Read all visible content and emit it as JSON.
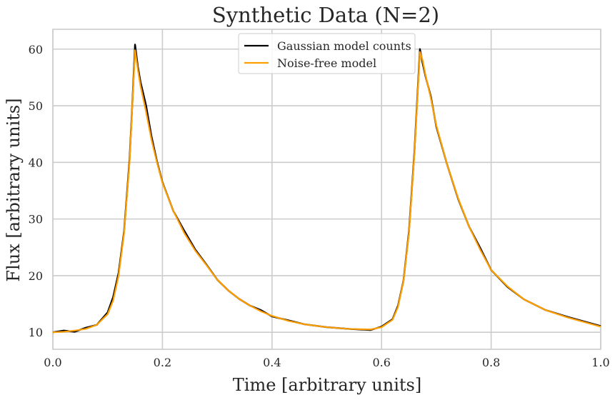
{
  "chart_data": {
    "type": "line",
    "title": "Synthetic Data (N=2)",
    "xlabel": "Time [arbitrary units]",
    "ylabel": "Flux [arbitrary units]",
    "xlim": [
      0.0,
      1.0
    ],
    "ylim": [
      7.0,
      63.5
    ],
    "xticks": [
      0.0,
      0.2,
      0.4,
      0.6,
      0.8,
      1.0
    ],
    "xtick_labels": [
      "0.0",
      "0.2",
      "0.4",
      "0.6",
      "0.8",
      "1.0"
    ],
    "yticks": [
      10,
      20,
      30,
      40,
      50,
      60
    ],
    "ytick_labels": [
      "10",
      "20",
      "30",
      "40",
      "50",
      "60"
    ],
    "grid": true,
    "legend_position": "top-center",
    "series": [
      {
        "name": "Gaussian model counts",
        "color": "#000000",
        "x": [
          0.0,
          0.02,
          0.04,
          0.06,
          0.08,
          0.1,
          0.11,
          0.12,
          0.13,
          0.14,
          0.145,
          0.15,
          0.155,
          0.16,
          0.17,
          0.18,
          0.19,
          0.2,
          0.22,
          0.24,
          0.26,
          0.28,
          0.3,
          0.32,
          0.34,
          0.36,
          0.38,
          0.4,
          0.43,
          0.46,
          0.5,
          0.54,
          0.58,
          0.6,
          0.62,
          0.63,
          0.64,
          0.65,
          0.66,
          0.67,
          0.675,
          0.68,
          0.69,
          0.7,
          0.72,
          0.74,
          0.76,
          0.78,
          0.8,
          0.83,
          0.86,
          0.9,
          0.94,
          0.97,
          1.0
        ],
        "y": [
          10.0,
          10.3,
          10.1,
          10.8,
          11.3,
          13.5,
          16.2,
          20.5,
          27.8,
          40.5,
          50.2,
          60.8,
          57.0,
          54.2,
          50.1,
          44.6,
          40.2,
          36.5,
          31.4,
          27.9,
          24.6,
          22.0,
          19.3,
          17.4,
          15.9,
          14.7,
          13.9,
          12.8,
          12.1,
          11.4,
          10.9,
          10.6,
          10.4,
          11.0,
          12.3,
          14.7,
          19.1,
          27.8,
          41.9,
          60.0,
          57.5,
          55.3,
          51.6,
          46.3,
          39.5,
          33.5,
          28.6,
          24.9,
          21.0,
          18.0,
          15.8,
          13.9,
          12.7,
          11.9,
          11.1
        ]
      },
      {
        "name": "Noise-free model",
        "color": "#ff9f00",
        "x": [
          0.0,
          0.02,
          0.04,
          0.06,
          0.08,
          0.1,
          0.11,
          0.12,
          0.13,
          0.14,
          0.145,
          0.15,
          0.155,
          0.16,
          0.17,
          0.18,
          0.19,
          0.2,
          0.22,
          0.24,
          0.26,
          0.28,
          0.3,
          0.32,
          0.34,
          0.36,
          0.38,
          0.4,
          0.43,
          0.46,
          0.5,
          0.54,
          0.58,
          0.6,
          0.62,
          0.63,
          0.64,
          0.65,
          0.66,
          0.67,
          0.675,
          0.68,
          0.69,
          0.7,
          0.72,
          0.74,
          0.76,
          0.78,
          0.8,
          0.83,
          0.86,
          0.9,
          0.94,
          0.97,
          1.0
        ],
        "y": [
          10.0,
          10.1,
          10.3,
          10.6,
          11.3,
          13.2,
          15.6,
          20.0,
          27.5,
          40.0,
          50.0,
          59.8,
          56.5,
          53.5,
          49.0,
          44.0,
          40.0,
          36.4,
          31.4,
          27.5,
          24.4,
          21.9,
          19.3,
          17.4,
          15.9,
          14.7,
          13.7,
          12.9,
          12.0,
          11.4,
          10.9,
          10.6,
          10.5,
          10.9,
          12.2,
          14.5,
          19.0,
          27.5,
          41.5,
          59.5,
          58.0,
          55.5,
          51.3,
          46.5,
          39.5,
          33.6,
          28.6,
          24.6,
          21.0,
          18.1,
          15.8,
          13.9,
          12.6,
          11.8,
          11.0
        ]
      }
    ]
  }
}
